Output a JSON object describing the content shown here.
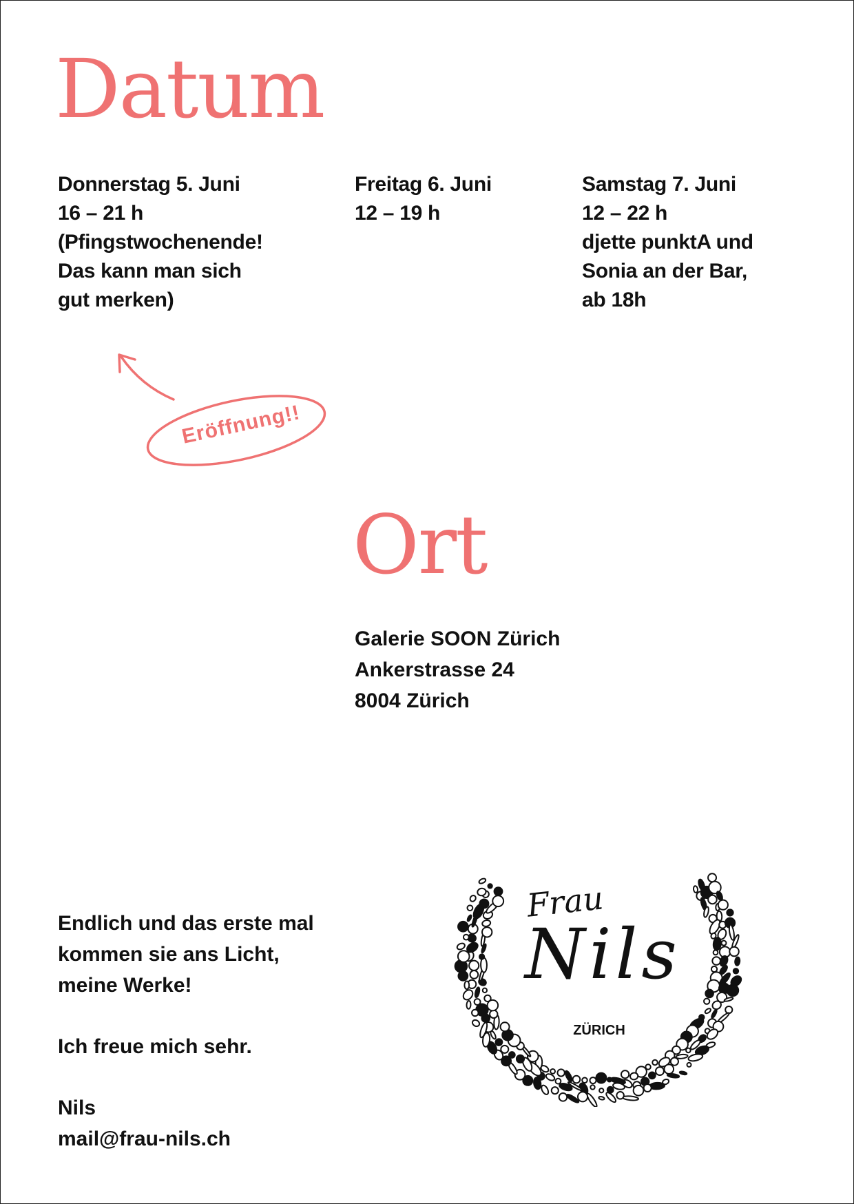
{
  "accent_color": "#ef7272",
  "datum": {
    "title": "Datum",
    "days": [
      {
        "heading": "Donnerstag 5. Juni",
        "lines": [
          "16 – 21 h",
          "(Pfingstwochenende!",
          "Das kann man sich",
          "gut merken)"
        ]
      },
      {
        "heading": "Freitag 6. Juni",
        "lines": [
          "12 – 19 h"
        ]
      },
      {
        "heading": "Samstag 7. Juni",
        "lines": [
          "12 – 22 h",
          "djette punktA und",
          "Sonia an der Bar,",
          "ab 18h"
        ]
      }
    ],
    "badge": "Eröffnung!!"
  },
  "ort": {
    "title": "Ort",
    "address": [
      "Galerie SOON Zürich",
      "Ankerstrasse 24",
      "8004 Zürich"
    ]
  },
  "note": {
    "paragraph1": [
      "Endlich und das erste mal",
      "kommen sie ans Licht,",
      "meine Werke!"
    ],
    "paragraph2": "Ich freue mich sehr.",
    "signature": "Nils",
    "email": "mail@frau-nils.ch"
  },
  "logo": {
    "line1": "Frau",
    "line2": "Nils",
    "line3": "ZÜRICH"
  }
}
